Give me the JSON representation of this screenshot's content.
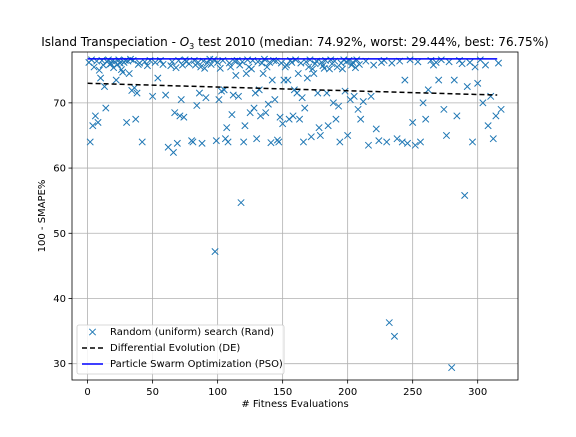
{
  "chart_data": {
    "type": "scatter",
    "title_parts": {
      "prefix": "Island Transpeciation - ",
      "o": "O",
      "sub": "3",
      "suffix": " test 2010 (median: 74.92%, worst: 29.44%, best: 76.75%)"
    },
    "xlabel": "# Fitness Evaluations",
    "ylabel": "100 - SMAPE%",
    "xlim": [
      -12,
      331
    ],
    "ylim": [
      27.5,
      77.8
    ],
    "xticks": [
      0,
      50,
      100,
      150,
      200,
      250,
      300
    ],
    "yticks": [
      30,
      40,
      50,
      60,
      70
    ],
    "grid": true,
    "legend_position": "lower-left",
    "colors": {
      "rand": "#1f77b4",
      "de": "#000000",
      "pso": "#0000ff",
      "grid": "#b0b0b0",
      "frame": "#000000"
    },
    "series": [
      {
        "name": "Random (uniform) search (Rand)",
        "kind": "markers",
        "marker": "x",
        "points": [
          [
            1,
            76.2
          ],
          [
            2,
            64
          ],
          [
            3,
            76.6
          ],
          [
            4,
            66.5
          ],
          [
            5,
            75.5
          ],
          [
            6,
            68
          ],
          [
            7,
            76.4
          ],
          [
            8,
            67
          ],
          [
            9,
            75
          ],
          [
            10,
            73.8
          ],
          [
            11,
            76.5
          ],
          [
            12,
            75.8
          ],
          [
            13,
            72.5
          ],
          [
            14,
            69.2
          ],
          [
            15,
            76.3
          ],
          [
            16,
            76.6
          ],
          [
            17,
            75.9
          ],
          [
            18,
            76
          ],
          [
            19,
            76.4
          ],
          [
            20,
            75.4
          ],
          [
            21,
            76.3
          ],
          [
            22,
            73.5
          ],
          [
            23,
            75.9
          ],
          [
            24,
            76.6
          ],
          [
            25,
            76.1
          ],
          [
            26,
            75.1
          ],
          [
            27,
            74.7
          ],
          [
            28,
            76.2
          ],
          [
            29,
            76.5
          ],
          [
            30,
            67
          ],
          [
            31,
            76.4
          ],
          [
            32,
            74.5
          ],
          [
            33,
            76.7
          ],
          [
            34,
            71.9
          ],
          [
            35,
            76.5
          ],
          [
            36,
            72.3
          ],
          [
            37,
            67.5
          ],
          [
            38,
            71.5
          ],
          [
            39,
            75.9
          ],
          [
            40,
            76.1
          ],
          [
            42,
            64
          ],
          [
            44,
            76.3
          ],
          [
            46,
            75.7
          ],
          [
            48,
            76.5
          ],
          [
            50,
            71
          ],
          [
            52,
            76.2
          ],
          [
            54,
            73.8
          ],
          [
            56,
            76.5
          ],
          [
            58,
            75.9
          ],
          [
            60,
            71.2
          ],
          [
            62,
            63.2
          ],
          [
            64,
            75.7
          ],
          [
            65,
            76.3
          ],
          [
            66,
            62.4
          ],
          [
            67,
            68.5
          ],
          [
            68,
            75.4
          ],
          [
            69,
            63.8
          ],
          [
            70,
            76.5
          ],
          [
            71,
            68
          ],
          [
            72,
            70.5
          ],
          [
            73,
            75.8
          ],
          [
            74,
            67.8
          ],
          [
            75,
            76.6
          ],
          [
            76,
            76.3
          ],
          [
            78,
            76
          ],
          [
            80,
            64.2
          ],
          [
            81,
            64
          ],
          [
            82,
            76.5
          ],
          [
            83,
            75.8
          ],
          [
            84,
            69.6
          ],
          [
            85,
            76.2
          ],
          [
            86,
            71.5
          ],
          [
            87,
            75.5
          ],
          [
            88,
            63.8
          ],
          [
            89,
            76.4
          ],
          [
            90,
            75.3
          ],
          [
            91,
            70.8
          ],
          [
            92,
            76.1
          ],
          [
            94,
            76.7
          ],
          [
            95,
            75.9
          ],
          [
            97,
            76.6
          ],
          [
            98,
            47.2
          ],
          [
            99,
            64.2
          ],
          [
            100,
            76.2
          ],
          [
            101,
            70.5
          ],
          [
            102,
            75.3
          ],
          [
            103,
            71.8
          ],
          [
            104,
            76.5
          ],
          [
            105,
            72
          ],
          [
            106,
            64.5
          ],
          [
            107,
            66.2
          ],
          [
            108,
            64
          ],
          [
            109,
            76.1
          ],
          [
            110,
            75.5
          ],
          [
            111,
            68.2
          ],
          [
            112,
            71.2
          ],
          [
            113,
            76.4
          ],
          [
            114,
            74.2
          ],
          [
            115,
            76.5
          ],
          [
            116,
            71
          ],
          [
            117,
            75.8
          ],
          [
            118,
            54.7
          ],
          [
            119,
            76.3
          ],
          [
            120,
            64
          ],
          [
            121,
            66.5
          ],
          [
            122,
            74.5
          ],
          [
            123,
            76.6
          ],
          [
            124,
            75.5
          ],
          [
            125,
            68.5
          ],
          [
            126,
            75.2
          ],
          [
            127,
            76.5
          ],
          [
            128,
            69.2
          ],
          [
            129,
            71.5
          ],
          [
            130,
            64.5
          ],
          [
            131,
            76.3
          ],
          [
            132,
            72
          ],
          [
            133,
            68
          ],
          [
            134,
            76.1
          ],
          [
            135,
            74.5
          ],
          [
            136,
            76.7
          ],
          [
            137,
            68.5
          ],
          [
            138,
            75.5
          ],
          [
            139,
            69.8
          ],
          [
            140,
            76.2
          ],
          [
            141,
            63.9
          ],
          [
            142,
            73.5
          ],
          [
            143,
            76.5
          ],
          [
            144,
            70.5
          ],
          [
            145,
            76.4
          ],
          [
            146,
            64.3
          ],
          [
            147,
            64
          ],
          [
            148,
            67.8
          ],
          [
            149,
            76.1
          ],
          [
            150,
            66.8
          ],
          [
            151,
            73.5
          ],
          [
            152,
            75.5
          ],
          [
            153,
            75.8
          ],
          [
            154,
            73.5
          ],
          [
            155,
            67.5
          ],
          [
            156,
            76.5
          ],
          [
            157,
            76.2
          ],
          [
            158,
            68
          ],
          [
            159,
            72
          ],
          [
            160,
            76.6
          ],
          [
            161,
            71.5
          ],
          [
            162,
            74.5
          ],
          [
            163,
            67.5
          ],
          [
            164,
            76.1
          ],
          [
            165,
            70.8
          ],
          [
            166,
            64
          ],
          [
            167,
            69.2
          ],
          [
            168,
            76.3
          ],
          [
            169,
            73.8
          ],
          [
            170,
            75.5
          ],
          [
            171,
            76.6
          ],
          [
            172,
            64.8
          ],
          [
            173,
            75.2
          ],
          [
            174,
            74.5
          ],
          [
            175,
            76
          ],
          [
            176,
            76.4
          ],
          [
            177,
            71.5
          ],
          [
            178,
            66.2
          ],
          [
            179,
            65
          ],
          [
            180,
            76.2
          ],
          [
            181,
            75.7
          ],
          [
            182,
            75.3
          ],
          [
            183,
            76.5
          ],
          [
            184,
            71.5
          ],
          [
            185,
            66.5
          ],
          [
            186,
            75.2
          ],
          [
            187,
            76.6
          ],
          [
            188,
            76
          ],
          [
            189,
            70
          ],
          [
            190,
            76.4
          ],
          [
            191,
            67.5
          ],
          [
            192,
            75.5
          ],
          [
            193,
            69.5
          ],
          [
            194,
            64
          ],
          [
            195,
            76.1
          ],
          [
            196,
            75.2
          ],
          [
            197,
            76.6
          ],
          [
            198,
            71.8
          ],
          [
            199,
            76.3
          ],
          [
            200,
            65
          ],
          [
            201,
            76.5
          ],
          [
            202,
            70.5
          ],
          [
            203,
            75.8
          ],
          [
            204,
            76.2
          ],
          [
            205,
            71
          ],
          [
            206,
            75.4
          ],
          [
            207,
            76.6
          ],
          [
            208,
            69
          ],
          [
            209,
            75.9
          ],
          [
            210,
            67.5
          ],
          [
            212,
            70.2
          ],
          [
            214,
            76.4
          ],
          [
            216,
            63.5
          ],
          [
            218,
            71
          ],
          [
            220,
            75.8
          ],
          [
            222,
            66
          ],
          [
            224,
            64.2
          ],
          [
            226,
            76.2
          ],
          [
            228,
            76.5
          ],
          [
            230,
            64
          ],
          [
            232,
            36.3
          ],
          [
            234,
            76.1
          ],
          [
            236,
            34.2
          ],
          [
            238,
            64.5
          ],
          [
            240,
            76.4
          ],
          [
            242,
            64
          ],
          [
            244,
            73.5
          ],
          [
            246,
            63.8
          ],
          [
            248,
            76.6
          ],
          [
            250,
            67
          ],
          [
            252,
            63.5
          ],
          [
            254,
            76.3
          ],
          [
            256,
            64
          ],
          [
            258,
            70
          ],
          [
            260,
            67.5
          ],
          [
            262,
            72
          ],
          [
            264,
            76.5
          ],
          [
            266,
            75.8
          ],
          [
            268,
            76.2
          ],
          [
            270,
            73.5
          ],
          [
            272,
            76.6
          ],
          [
            274,
            69
          ],
          [
            276,
            65
          ],
          [
            278,
            76.3
          ],
          [
            280,
            29.4
          ],
          [
            282,
            73.5
          ],
          [
            284,
            68
          ],
          [
            286,
            76.5
          ],
          [
            288,
            76
          ],
          [
            290,
            55.8
          ],
          [
            292,
            72.5
          ],
          [
            294,
            76.2
          ],
          [
            296,
            64
          ],
          [
            298,
            75.5
          ],
          [
            300,
            73
          ],
          [
            302,
            76.6
          ],
          [
            304,
            70
          ],
          [
            306,
            75.8
          ],
          [
            308,
            66.5
          ],
          [
            310,
            71
          ],
          [
            312,
            64.5
          ],
          [
            314,
            68
          ],
          [
            316,
            76.1
          ],
          [
            318,
            69
          ]
        ]
      },
      {
        "name": "Differential Evolution (DE)",
        "kind": "line",
        "dash": "5,3",
        "points": [
          [
            0,
            73.0
          ],
          [
            315,
            71.2
          ]
        ]
      },
      {
        "name": "Particle Swarm Optimization (PSO)",
        "kind": "line",
        "points": [
          [
            0,
            76.75
          ],
          [
            315,
            76.75
          ]
        ]
      }
    ]
  }
}
